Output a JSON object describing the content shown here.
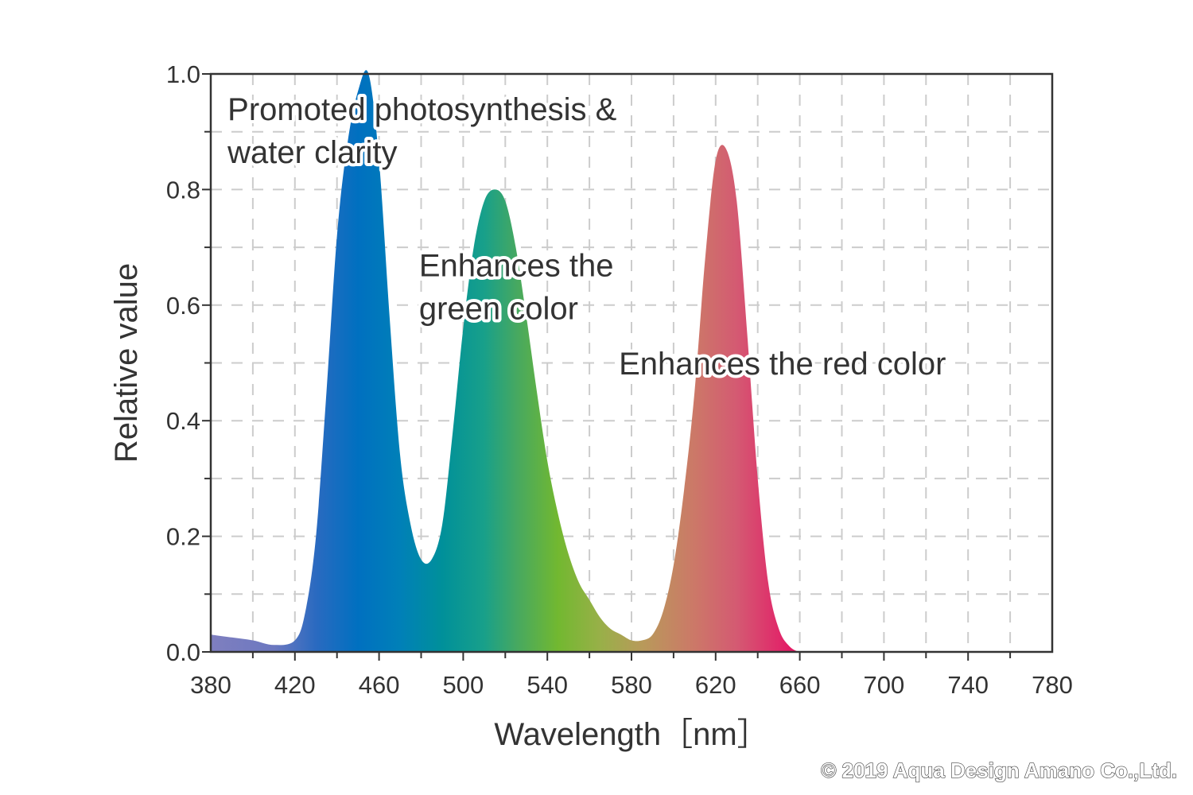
{
  "chart_data": {
    "type": "area",
    "xlabel": "Wavelength［nm］",
    "ylabel": "Relative value",
    "xlim": [
      380,
      780
    ],
    "ylim": [
      0,
      1.0
    ],
    "x_ticks": [
      "380",
      "420",
      "460",
      "500",
      "540",
      "580",
      "620",
      "660",
      "700",
      "740",
      "780"
    ],
    "y_ticks": [
      "0.0",
      "0.2",
      "0.4",
      "0.6",
      "0.8",
      "1.0"
    ],
    "grid": true,
    "series": [
      {
        "x": [
          380,
          390,
          400,
          410,
          420,
          425,
          430,
          435,
          440,
          445,
          450,
          455,
          460,
          465,
          470,
          475,
          480,
          485,
          490,
          495,
          500,
          505,
          510,
          515,
          520,
          525,
          530,
          535,
          540,
          545,
          550,
          555,
          560,
          565,
          570,
          575,
          580,
          585,
          590,
          595,
          600,
          605,
          610,
          615,
          620,
          625,
          630,
          635,
          640,
          645,
          650,
          655,
          660,
          665
        ],
        "y": [
          0.03,
          0.025,
          0.02,
          0.012,
          0.02,
          0.07,
          0.2,
          0.45,
          0.72,
          0.88,
          0.97,
          1.0,
          0.85,
          0.58,
          0.34,
          0.22,
          0.16,
          0.16,
          0.22,
          0.38,
          0.56,
          0.7,
          0.78,
          0.8,
          0.78,
          0.7,
          0.58,
          0.45,
          0.33,
          0.24,
          0.17,
          0.12,
          0.09,
          0.06,
          0.04,
          0.03,
          0.02,
          0.02,
          0.03,
          0.07,
          0.15,
          0.28,
          0.45,
          0.68,
          0.85,
          0.87,
          0.78,
          0.55,
          0.3,
          0.12,
          0.04,
          0.01,
          0.0,
          0.0
        ]
      }
    ],
    "annotations": [
      {
        "lines": [
          "Promoted photosynthesis &",
          "water clarity"
        ],
        "x": 388,
        "y": 0.92
      },
      {
        "lines": [
          "Enhances the",
          "green color"
        ],
        "x": 479,
        "y": 0.65
      },
      {
        "lines": [
          "Enhances the red color"
        ],
        "x": 574,
        "y": 0.48
      }
    ],
    "colors": {
      "gradient_stops": [
        {
          "wl": 380,
          "color": "#7f7fbf"
        },
        {
          "wl": 410,
          "color": "#6c78c0"
        },
        {
          "wl": 430,
          "color": "#2a6ac0"
        },
        {
          "wl": 450,
          "color": "#0070c0"
        },
        {
          "wl": 470,
          "color": "#0080b8"
        },
        {
          "wl": 490,
          "color": "#00909a"
        },
        {
          "wl": 510,
          "color": "#18a08a"
        },
        {
          "wl": 525,
          "color": "#45a862"
        },
        {
          "wl": 545,
          "color": "#72b830"
        },
        {
          "wl": 565,
          "color": "#98b048"
        },
        {
          "wl": 585,
          "color": "#b89a5a"
        },
        {
          "wl": 610,
          "color": "#cc7868"
        },
        {
          "wl": 630,
          "color": "#d45a72"
        },
        {
          "wl": 650,
          "color": "#e02a6a"
        },
        {
          "wl": 665,
          "color": "#e8005a"
        }
      ],
      "text": "#333333",
      "grid": "#cccccc",
      "axis": "#333333"
    }
  },
  "copyright": "© 2019 Aqua Design Amano Co.,Ltd."
}
